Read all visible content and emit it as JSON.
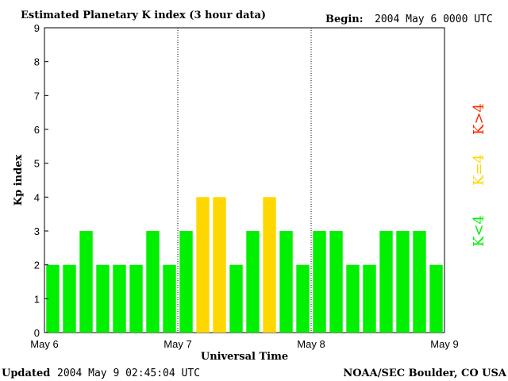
{
  "header": {
    "title": "Estimated Planetary K index (3 hour data)",
    "begin_label": "Begin:",
    "begin_value": "2004 May 6 0000 UTC"
  },
  "footer": {
    "updated_label": "Updated",
    "updated_value": "2004 May  9 02:45:04 UTC",
    "credit": "NOAA/SEC Boulder, CO USA"
  },
  "legend": {
    "low": "K<4",
    "mid": "K=4",
    "high": "K>4"
  },
  "colors": {
    "low": "#00f000",
    "mid": "#ffd700",
    "high": "#ff2a00"
  },
  "chart_data": {
    "type": "bar",
    "title": "Estimated Planetary K index (3 hour data)",
    "xlabel": "Universal Time",
    "ylabel": "Kp index",
    "ylim": [
      0,
      9
    ],
    "yticks": [
      "0",
      "1",
      "2",
      "3",
      "4",
      "5",
      "6",
      "7",
      "8",
      "9"
    ],
    "xticks": [
      "May 6",
      "May 7",
      "May 8",
      "May 9"
    ],
    "day_separators": [
      "May 7",
      "May 8"
    ],
    "values": [
      2,
      2,
      3,
      2,
      2,
      2,
      3,
      2,
      3,
      4,
      4,
      2,
      3,
      4,
      3,
      2,
      3,
      3,
      2,
      2,
      3,
      3,
      3,
      2
    ],
    "grid": false
  }
}
